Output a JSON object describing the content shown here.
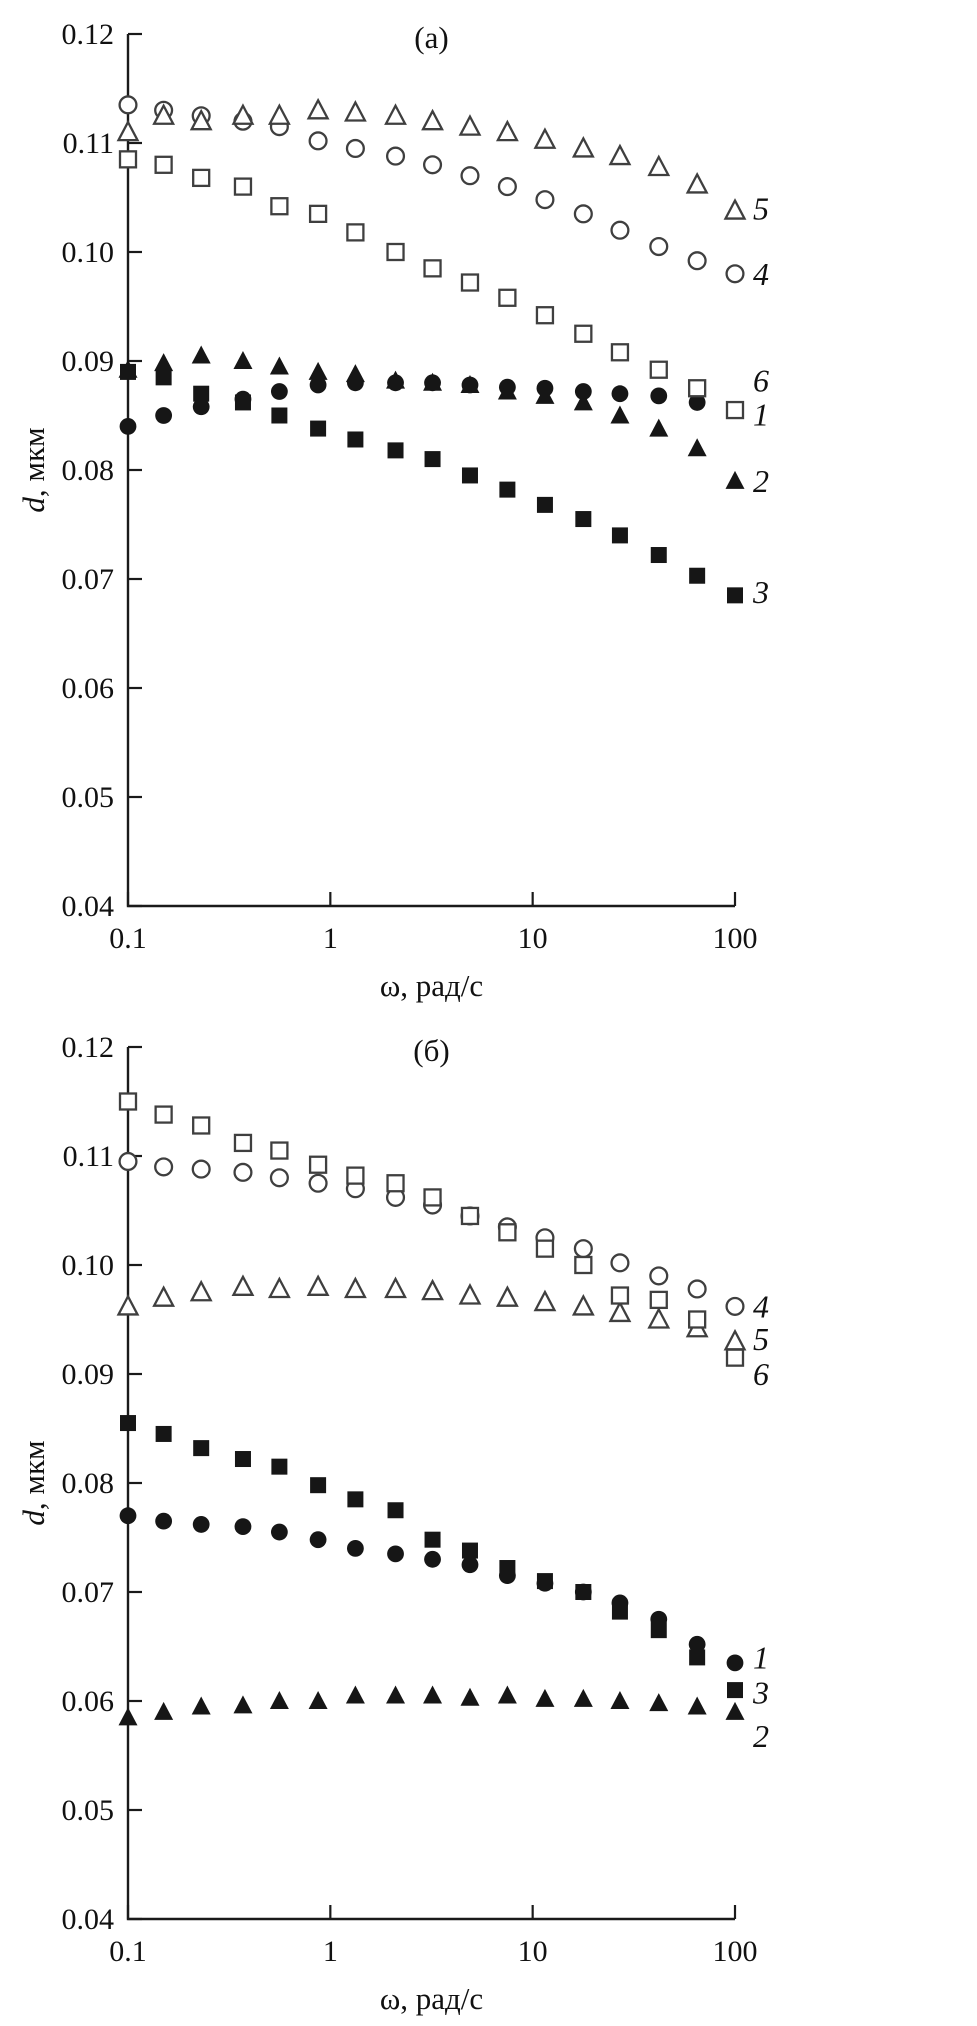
{
  "page": {
    "background": "#ffffff",
    "marker_fill_color": "#161616",
    "marker_open_stroke": "#3f3f3f"
  },
  "chart_data": [
    {
      "type": "scatter",
      "panel_label": "(а)",
      "xlabel": "ω, рад/с",
      "ylabel_italic": "d",
      "ylabel_rest": ", мкм",
      "xscale": "log",
      "xlim": [
        0.1,
        100
      ],
      "ylim": [
        0.04,
        0.12
      ],
      "xticks": [
        0.1,
        1,
        10,
        100
      ],
      "xtick_labels": [
        "0.1",
        "1",
        "10",
        "100"
      ],
      "yticks": [
        0.04,
        0.05,
        0.06,
        0.07,
        0.08,
        0.09,
        0.1,
        0.11,
        0.12
      ],
      "ytick_labels": [
        "0.04",
        "0.05",
        "0.06",
        "0.07",
        "0.08",
        "0.09",
        "0.10",
        "0.11",
        "0.12"
      ],
      "x": [
        0.1,
        0.15,
        0.23,
        0.37,
        0.56,
        0.87,
        1.33,
        2.1,
        3.2,
        4.9,
        7.5,
        11.5,
        17.8,
        27,
        42,
        65,
        100
      ],
      "series": [
        {
          "name": "1",
          "marker": "filled-circle",
          "y": [
            0.084,
            0.085,
            0.0858,
            0.0865,
            0.0872,
            0.0878,
            0.088,
            0.088,
            0.088,
            0.0878,
            0.0876,
            0.0875,
            0.0872,
            0.087,
            0.0868,
            0.0862,
            0.0855
          ],
          "label_y": 0.0851
        },
        {
          "name": "2",
          "marker": "filled-triangle",
          "y": [
            0.0892,
            0.0898,
            0.0905,
            0.09,
            0.0895,
            0.089,
            0.0888,
            0.0882,
            0.088,
            0.0878,
            0.0872,
            0.0868,
            0.0862,
            0.085,
            0.0838,
            0.082,
            0.079
          ],
          "label_y": 0.079
        },
        {
          "name": "3",
          "marker": "filled-square",
          "y": [
            0.089,
            0.0885,
            0.087,
            0.0862,
            0.085,
            0.0838,
            0.0828,
            0.0818,
            0.081,
            0.0795,
            0.0782,
            0.0768,
            0.0755,
            0.074,
            0.0722,
            0.0703,
            0.0685
          ],
          "label_y": 0.0688
        },
        {
          "name": "4",
          "marker": "open-circle",
          "y": [
            0.1135,
            0.113,
            0.1125,
            0.112,
            0.1115,
            0.1102,
            0.1095,
            0.1088,
            0.108,
            0.107,
            0.106,
            0.1048,
            0.1035,
            0.102,
            0.1005,
            0.0992,
            0.098
          ],
          "label_y": 0.098
        },
        {
          "name": "5",
          "marker": "open-triangle",
          "y": [
            0.111,
            0.1125,
            0.112,
            0.1125,
            0.1125,
            0.113,
            0.1128,
            0.1125,
            0.112,
            0.1115,
            0.111,
            0.1103,
            0.1095,
            0.1088,
            0.1078,
            0.1062,
            0.1038
          ],
          "label_y": 0.104
        },
        {
          "name": "6",
          "marker": "open-square",
          "y": [
            0.1085,
            0.108,
            0.1068,
            0.106,
            0.1042,
            0.1035,
            0.1018,
            0.1,
            0.0985,
            0.0972,
            0.0958,
            0.0942,
            0.0925,
            0.0908,
            0.0892,
            0.0875,
            0.0855
          ],
          "label_y": 0.0882
        }
      ]
    },
    {
      "type": "scatter",
      "panel_label": "(б)",
      "xlabel": "ω, рад/с",
      "ylabel_italic": "d",
      "ylabel_rest": ", мкм",
      "xscale": "log",
      "xlim": [
        0.1,
        100
      ],
      "ylim": [
        0.04,
        0.12
      ],
      "xticks": [
        0.1,
        1,
        10,
        100
      ],
      "xtick_labels": [
        "0.1",
        "1",
        "10",
        "100"
      ],
      "yticks": [
        0.04,
        0.05,
        0.06,
        0.07,
        0.08,
        0.09,
        0.1,
        0.11,
        0.12
      ],
      "ytick_labels": [
        "0.04",
        "0.05",
        "0.06",
        "0.07",
        "0.08",
        "0.09",
        "0.10",
        "0.11",
        "0.12"
      ],
      "x": [
        0.1,
        0.15,
        0.23,
        0.37,
        0.56,
        0.87,
        1.33,
        2.1,
        3.2,
        4.9,
        7.5,
        11.5,
        17.8,
        27,
        42,
        65,
        100
      ],
      "series": [
        {
          "name": "1",
          "marker": "filled-circle",
          "y": [
            0.077,
            0.0765,
            0.0762,
            0.076,
            0.0755,
            0.0748,
            0.074,
            0.0735,
            0.073,
            0.0725,
            0.0715,
            0.0708,
            0.07,
            0.069,
            0.0675,
            0.0652,
            0.0635
          ],
          "label_y": 0.064
        },
        {
          "name": "2",
          "marker": "filled-triangle",
          "y": [
            0.0585,
            0.059,
            0.0595,
            0.0596,
            0.06,
            0.06,
            0.0605,
            0.0605,
            0.0605,
            0.0603,
            0.0605,
            0.0602,
            0.0602,
            0.06,
            0.0598,
            0.0595,
            0.059
          ],
          "label_y": 0.0568
        },
        {
          "name": "3",
          "marker": "filled-square",
          "y": [
            0.0855,
            0.0845,
            0.0832,
            0.0822,
            0.0815,
            0.0798,
            0.0785,
            0.0775,
            0.0748,
            0.0738,
            0.0722,
            0.071,
            0.07,
            0.0682,
            0.0665,
            0.064,
            0.061
          ],
          "label_y": 0.0608
        },
        {
          "name": "4",
          "marker": "open-circle",
          "y": [
            0.1095,
            0.109,
            0.1088,
            0.1085,
            0.108,
            0.1075,
            0.107,
            0.1062,
            0.1055,
            0.1045,
            0.1035,
            0.1025,
            0.1015,
            0.1002,
            0.099,
            0.0978,
            0.0962
          ],
          "label_y": 0.0962
        },
        {
          "name": "5",
          "marker": "open-triangle",
          "y": [
            0.0962,
            0.097,
            0.0975,
            0.098,
            0.0978,
            0.098,
            0.0978,
            0.0978,
            0.0976,
            0.0972,
            0.097,
            0.0966,
            0.0962,
            0.0956,
            0.095,
            0.0942,
            0.093
          ],
          "label_y": 0.0932
        },
        {
          "name": "6",
          "marker": "open-square",
          "y": [
            0.115,
            0.1138,
            0.1128,
            0.1112,
            0.1105,
            0.1092,
            0.1082,
            0.1075,
            0.1062,
            0.1045,
            0.103,
            0.1015,
            0.1,
            0.0972,
            0.0968,
            0.095,
            0.0915
          ],
          "label_y": 0.09
        }
      ]
    }
  ]
}
